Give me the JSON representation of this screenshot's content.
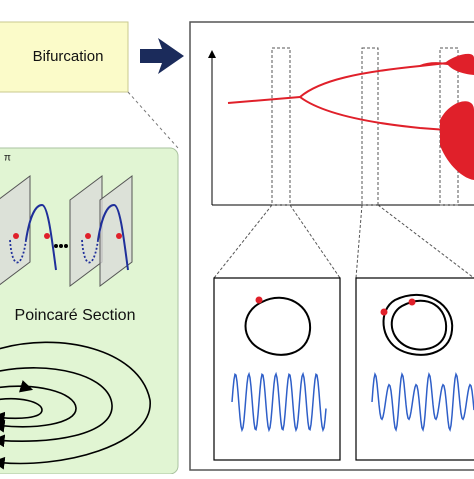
{
  "bifurcation_box": {
    "label": "Bifurcation"
  },
  "poincare": {
    "label": "Poincaré Section",
    "phase_label": "π"
  }
}
